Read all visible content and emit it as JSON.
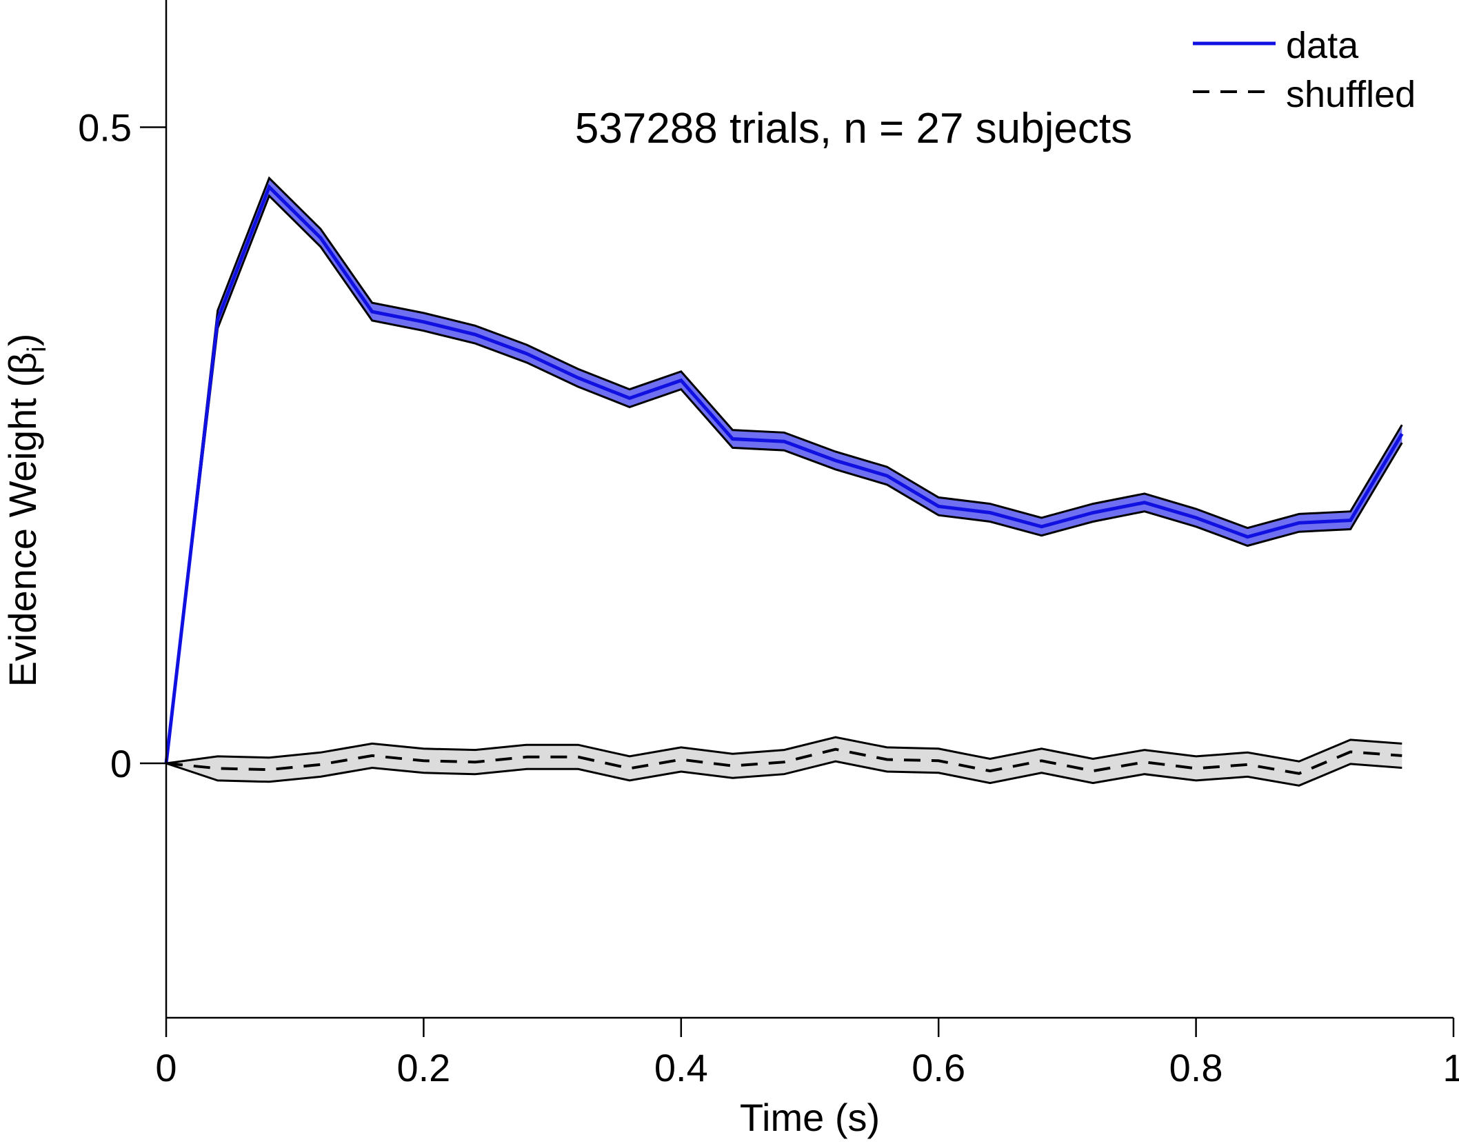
{
  "chart_data": {
    "type": "line",
    "title": "",
    "annotation": "537288 trials, n = 27 subjects",
    "xlabel": "Time (s)",
    "ylabel_main": "Evidence Weight (β",
    "ylabel_subscript": "i",
    "ylabel_close": ")",
    "xlim": [
      0,
      1
    ],
    "ylim": [
      -0.2,
      0.6
    ],
    "x_ticks": [
      0,
      0.2,
      0.4,
      0.6,
      0.8,
      1
    ],
    "x_tick_labels": [
      "0",
      "0.2",
      "0.4",
      "0.6",
      "0.8",
      "1"
    ],
    "y_ticks": [
      0,
      0.5
    ],
    "y_tick_labels": [
      "0",
      "0.5"
    ],
    "grid": false,
    "legend_position": "top-right",
    "x": [
      0,
      0.04,
      0.08,
      0.12,
      0.16,
      0.2,
      0.24,
      0.28,
      0.32,
      0.36,
      0.4,
      0.44,
      0.48,
      0.52,
      0.56,
      0.6,
      0.64,
      0.68,
      0.72,
      0.76,
      0.8,
      0.84,
      0.88,
      0.92,
      0.96
    ],
    "series": [
      {
        "name": "data",
        "style": "solid",
        "color": "#1010e0",
        "band_color": "#6f6ff2",
        "values": [
          0,
          0.349,
          0.453,
          0.413,
          0.355,
          0.347,
          0.337,
          0.322,
          0.303,
          0.287,
          0.301,
          0.255,
          0.253,
          0.238,
          0.226,
          0.202,
          0.197,
          0.186,
          0.197,
          0.205,
          0.193,
          0.178,
          0.189,
          0.191,
          0.259
        ],
        "error": [
          0,
          0.007,
          0.007,
          0.007,
          0.007,
          0.007,
          0.007,
          0.007,
          0.007,
          0.007,
          0.007,
          0.007,
          0.007,
          0.007,
          0.007,
          0.007,
          0.007,
          0.007,
          0.007,
          0.007,
          0.007,
          0.007,
          0.007,
          0.007,
          0.007
        ]
      },
      {
        "name": "shuffled",
        "style": "dashed",
        "color": "#000000",
        "band_color": "#dcdcdc",
        "values": [
          0,
          -0.004,
          -0.005,
          -0.001,
          0.006,
          0.002,
          0.001,
          0.005,
          0.005,
          -0.004,
          0.003,
          -0.002,
          0.001,
          0.011,
          0.003,
          0.002,
          -0.006,
          0.002,
          -0.006,
          0.001,
          -0.004,
          -0.001,
          -0.008,
          0.009,
          0.006
        ]
      }
    ],
    "colors": {
      "axis": "#000000",
      "band_outline": "#000000"
    }
  }
}
